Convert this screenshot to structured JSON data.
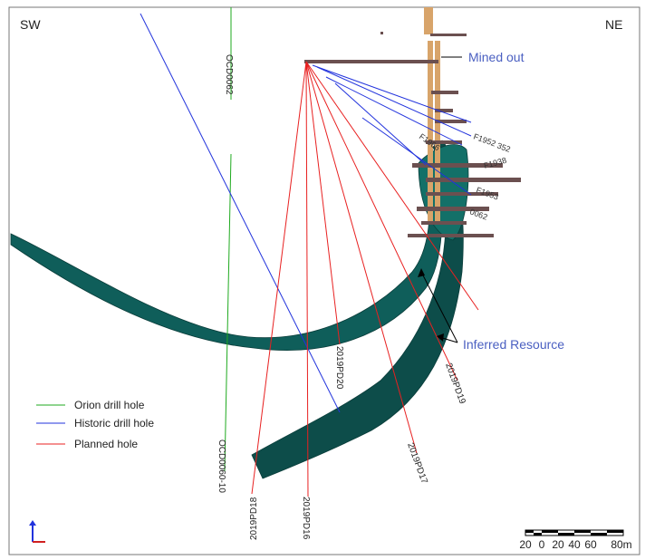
{
  "orientation": {
    "left": "SW",
    "right": "NE"
  },
  "annotations": {
    "mined_out": "Mined out",
    "inferred_resource": "Inferred Resource"
  },
  "holes": [
    "OCD0062",
    "OCD0060-10",
    "2019PD18",
    "2019PD16",
    "2019PD20",
    "2019PD17",
    "2019PD19"
  ],
  "workings_labels": [
    "F1952",
    "352",
    "F1938",
    "F1953",
    "0062",
    "F1966"
  ],
  "legend": [
    "Orion drill hole",
    "Historic drill hole",
    "Planned hole"
  ],
  "scale_bar": [
    "20",
    "0",
    "20",
    "40",
    "60",
    "80m"
  ]
}
